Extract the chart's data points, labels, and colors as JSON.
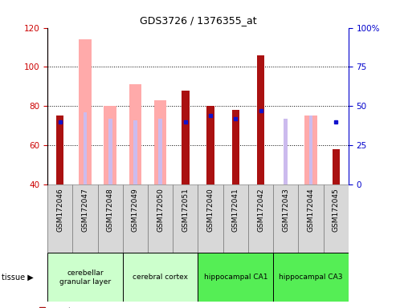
{
  "title": "GDS3726 / 1376355_at",
  "samples": [
    "GSM172046",
    "GSM172047",
    "GSM172048",
    "GSM172049",
    "GSM172050",
    "GSM172051",
    "GSM172040",
    "GSM172041",
    "GSM172042",
    "GSM172043",
    "GSM172044",
    "GSM172045"
  ],
  "count": [
    75,
    null,
    null,
    null,
    null,
    88,
    80,
    78,
    106,
    null,
    null,
    58
  ],
  "percentile_rank": [
    40,
    null,
    null,
    null,
    null,
    40,
    44,
    42,
    47,
    null,
    null,
    40
  ],
  "value_absent": [
    null,
    114,
    80,
    91,
    83,
    null,
    null,
    null,
    null,
    null,
    75,
    null
  ],
  "rank_absent": [
    null,
    46,
    42,
    41,
    42,
    null,
    null,
    null,
    null,
    42,
    44,
    null
  ],
  "tissue_groups": [
    {
      "label": "cerebellar\ngranular layer",
      "start": 0,
      "end": 3,
      "color": "#ccffcc"
    },
    {
      "label": "cerebral cortex",
      "start": 3,
      "end": 6,
      "color": "#ccffcc"
    },
    {
      "label": "hippocampal CA1",
      "start": 6,
      "end": 9,
      "color": "#55ee55"
    },
    {
      "label": "hippocampal CA3",
      "start": 9,
      "end": 12,
      "color": "#55ee55"
    }
  ],
  "ylim_left": [
    40,
    120
  ],
  "ylim_right": [
    0,
    100
  ],
  "yticks_left": [
    40,
    60,
    80,
    100,
    120
  ],
  "yticks_right": [
    0,
    25,
    50,
    75,
    100
  ],
  "count_color": "#aa1111",
  "percentile_color": "#1111cc",
  "value_absent_color": "#ffaaaa",
  "rank_absent_color": "#ccbbee",
  "left_axis_color": "#cc0000",
  "right_axis_color": "#0000cc"
}
